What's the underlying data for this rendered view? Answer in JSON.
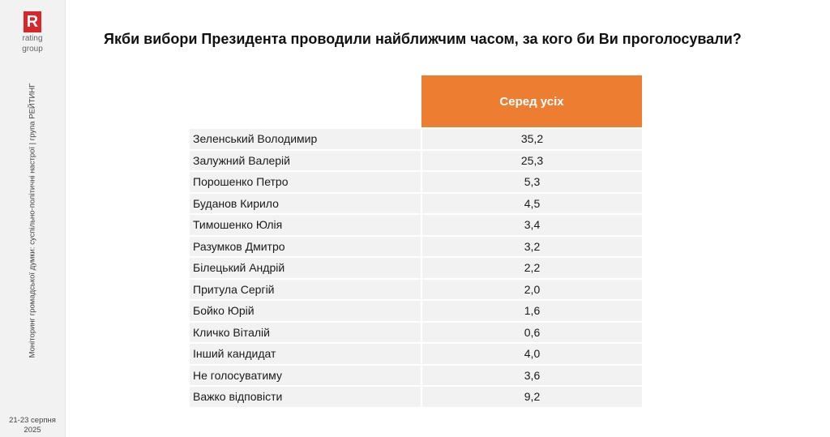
{
  "logo": {
    "letter": "R",
    "line1": "rating",
    "line2": "group"
  },
  "sidebar": {
    "vertical_caption": "Моніторинг громадської думки: суспільно-політичні настрої | група РЕЙТИНГ",
    "date_line1": "21-23 серпня",
    "date_line2": "2025"
  },
  "title": "Якби вибори Президента проводили найближчим часом, за кого би Ви проголосували?",
  "table": {
    "column_header": "Серед усіх",
    "rows": [
      {
        "name": "Зеленський Володимир",
        "value": "35,2"
      },
      {
        "name": "Залужний Валерій",
        "value": "25,3"
      },
      {
        "name": "Порошенко Петро",
        "value": "5,3"
      },
      {
        "name": "Буданов Кирило",
        "value": "4,5"
      },
      {
        "name": "Тимошенко Юлія",
        "value": "3,4"
      },
      {
        "name": "Разумков Дмитро",
        "value": "3,2"
      },
      {
        "name": "Білецький Андрій",
        "value": "2,2"
      },
      {
        "name": "Притула Сергій",
        "value": "2,0"
      },
      {
        "name": "Бойко Юрій",
        "value": "1,6"
      },
      {
        "name": "Кличко Віталій",
        "value": "0,6"
      },
      {
        "name": "Інший кандидат",
        "value": "4,0"
      },
      {
        "name": "Не голосуватиму",
        "value": "3,6"
      },
      {
        "name": "Важко відповісти",
        "value": "9,2"
      }
    ]
  },
  "colors": {
    "header_fill": "#ed7d31",
    "logo_red": "#d9262b",
    "row_fill": "#f2f2f2"
  }
}
